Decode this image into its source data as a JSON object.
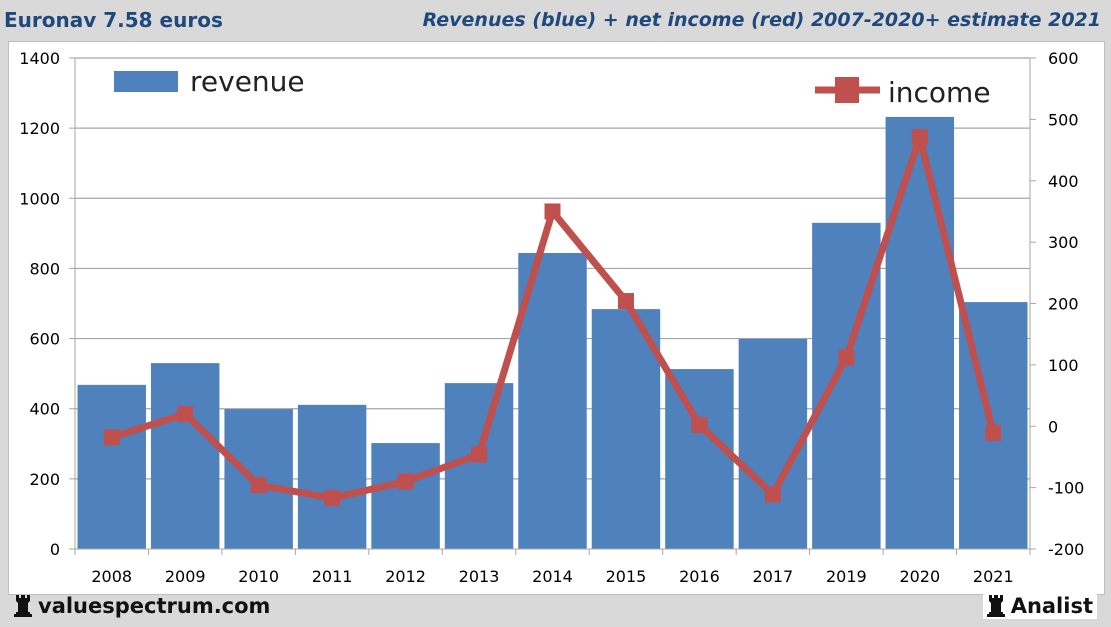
{
  "header": {
    "left_title": "Euronav 7.58 euros",
    "right_title": "Revenues (blue) + net income (red) 2007-2020+ estimate 2021"
  },
  "footer": {
    "left_brand": "valuespectrum.com",
    "right_brand": "Analist",
    "brand_icon": "rook-icon"
  },
  "colors": {
    "revenue": "#4f81bd",
    "income": "#c0504d",
    "title": "#1f497d"
  },
  "chart_data": {
    "type": "bar",
    "title": "Revenues (blue) + net income (red) 2007-2020+ estimate 2021",
    "categories": [
      "2008",
      "2009",
      "2010",
      "2011",
      "2012",
      "2013",
      "2014",
      "2015",
      "2016",
      "2017",
      "2019",
      "2020",
      "2021"
    ],
    "series": [
      {
        "name": "revenue",
        "type": "bar",
        "axis": "left",
        "values": [
          468,
          530,
          399,
          411,
          302,
          473,
          844,
          684,
          513,
          599,
          930,
          1232,
          704
        ]
      },
      {
        "name": "income",
        "type": "line",
        "axis": "right",
        "values": [
          -18,
          20,
          -96,
          -117,
          -90,
          -46,
          350,
          204,
          2,
          -111,
          112,
          471,
          -11
        ]
      }
    ],
    "y_left": {
      "range": [
        0,
        1400
      ],
      "ticks": [
        "0",
        "200",
        "400",
        "600",
        "800",
        "1000",
        "1200",
        "1400"
      ]
    },
    "y_right": {
      "range": [
        -200,
        600
      ],
      "ticks": [
        "-200",
        "-100",
        "0",
        "100",
        "200",
        "300",
        "400",
        "500",
        "600"
      ]
    },
    "legend": [
      {
        "label": "revenue",
        "placement": "top-left"
      },
      {
        "label": "income",
        "placement": "top-right"
      }
    ],
    "grid": true,
    "xlabel": "",
    "ylabel": ""
  }
}
